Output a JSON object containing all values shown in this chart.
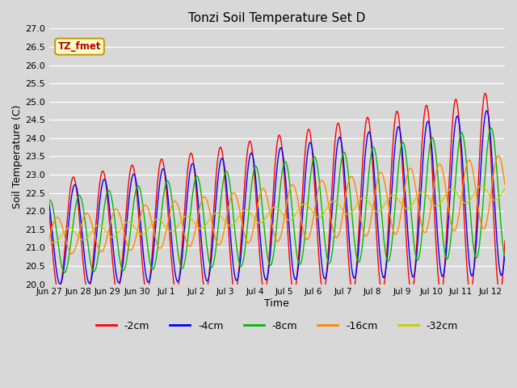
{
  "title": "Tonzi Soil Temperature Set D",
  "xlabel": "Time",
  "ylabel": "Soil Temperature (C)",
  "ylim": [
    20.0,
    27.0
  ],
  "yticks": [
    20.0,
    20.5,
    21.0,
    21.5,
    22.0,
    22.5,
    23.0,
    23.5,
    24.0,
    24.5,
    25.0,
    25.5,
    26.0,
    26.5,
    27.0
  ],
  "xtick_labels": [
    "Jun 27",
    "Jun 28",
    "Jun 29",
    "Jun 30",
    "Jul 1",
    "Jul 2",
    "Jul 3",
    "Jul 4",
    "Jul 5",
    "Jul 6",
    "Jul 7",
    "Jul 8",
    "Jul 9",
    "Jul 10",
    "Jul 11",
    "Jul 12"
  ],
  "series_colors": [
    "#ff0000",
    "#0000ff",
    "#00bb00",
    "#ff8800",
    "#cccc00"
  ],
  "series_labels": [
    "-2cm",
    "-4cm",
    "-8cm",
    "-16cm",
    "-32cm"
  ],
  "legend_label": "TZ_fmet",
  "legend_box_color": "#ffffcc",
  "legend_box_edge": "#cc9900",
  "fig_bg_color": "#d8d8d8",
  "plot_bg_color": "#d8d8d8",
  "grid_color": "#ffffff",
  "n_days": 15.5,
  "samples_per_day": 48,
  "base_temp": 21.3,
  "trend_slope": 0.08,
  "amp_start": [
    1.5,
    1.3,
    1.0,
    0.5,
    0.18
  ],
  "amp_end": [
    2.8,
    2.3,
    1.8,
    1.0,
    0.22
  ],
  "phase_shifts_days": [
    0.0,
    0.05,
    0.2,
    0.45,
    0.85
  ],
  "peak_time_of_day": 0.58
}
